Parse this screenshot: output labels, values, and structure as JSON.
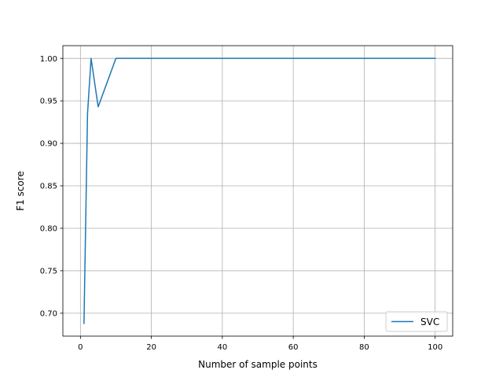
{
  "chart_data": {
    "type": "line",
    "title": "",
    "xlabel": "Number of sample points",
    "ylabel": "F1 score",
    "xlim": [
      -4.95,
      104.95
    ],
    "ylim": [
      0.673,
      1.015
    ],
    "x_ticks": [
      0,
      20,
      40,
      60,
      80,
      100
    ],
    "x_tick_labels": [
      "0",
      "20",
      "40",
      "60",
      "80",
      "100"
    ],
    "y_ticks": [
      0.7,
      0.75,
      0.8,
      0.85,
      0.9,
      0.95,
      1.0
    ],
    "y_tick_labels": [
      "0.70",
      "0.75",
      "0.80",
      "0.85",
      "0.90",
      "0.95",
      "1.00"
    ],
    "grid": true,
    "legend_position": "lower-right",
    "series": [
      {
        "name": "SVC",
        "color": "#1f77b4",
        "x": [
          1,
          2,
          3,
          5,
          10,
          20,
          50,
          100
        ],
        "y": [
          0.688,
          0.935,
          1.0,
          0.943,
          1.0,
          1.0,
          1.0,
          1.0
        ]
      }
    ]
  }
}
